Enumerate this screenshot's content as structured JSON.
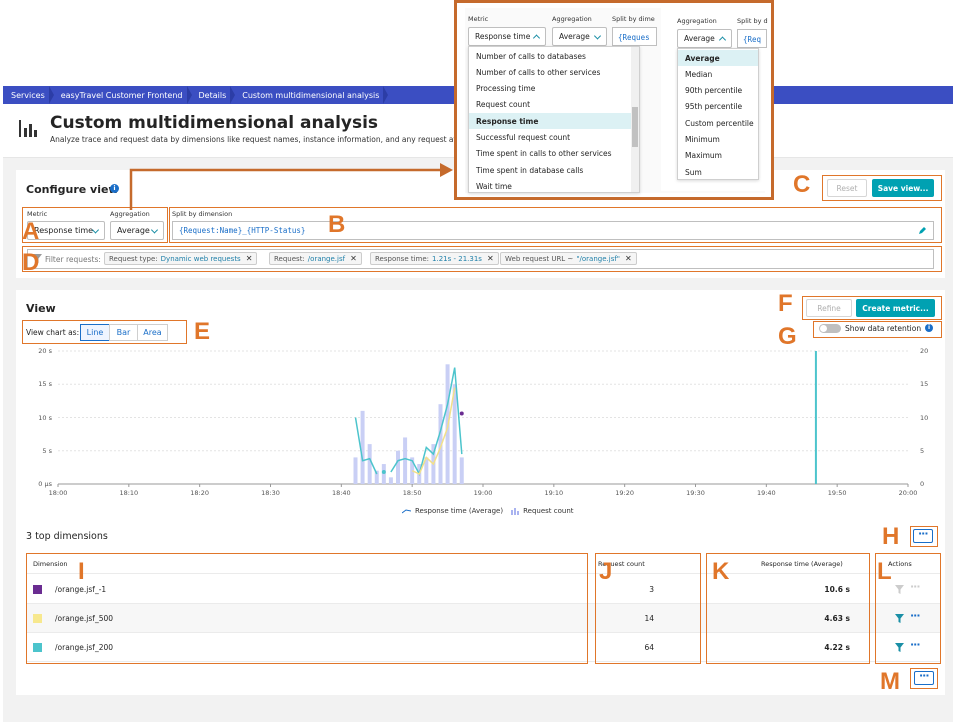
{
  "breadcrumb": [
    "Services",
    "easyTravel Customer Frontend",
    "Details",
    "Custom multidimensional analysis"
  ],
  "header": {
    "title": "Custom multidimensional analysis",
    "subtitle": "Analyze trace and request data by dimensions like request names, instance information, and any request attributes."
  },
  "configure": {
    "title": "Configure view",
    "metric_label": "Metric",
    "metric_value": "Response time",
    "aggregation_label": "Aggregation",
    "aggregation_value": "Average",
    "split_label": "Split by dimension",
    "split_value": "{Request:Name}_{HTTP-Status}",
    "reset_label": "Reset",
    "save_label": "Save view...",
    "filter_label": "Filter requests:",
    "filters": [
      {
        "key": "Request type:",
        "value": "Dynamic web requests"
      },
      {
        "key": "Request:",
        "value": "/orange.jsf"
      },
      {
        "key": "Response time:",
        "value": "1.21s - 21.31s"
      },
      {
        "key": "Web request URL ~",
        "value": "\"/orange.jsf\""
      }
    ]
  },
  "view": {
    "title": "View",
    "chart_as_label": "View chart as:",
    "chart_types": [
      "Line",
      "Bar",
      "Area"
    ],
    "refine_label": "Refine",
    "create_metric_label": "Create metric...",
    "retention_label": "Show data retention"
  },
  "chart_data": {
    "type": "line",
    "x_ticks": [
      "18:00",
      "18:10",
      "18:20",
      "18:30",
      "18:40",
      "18:50",
      "19:00",
      "19:10",
      "19:20",
      "19:30",
      "19:40",
      "19:50",
      "20:00"
    ],
    "y_left_ticks": [
      "20 s",
      "15 s",
      "10 s",
      "5 s",
      "0 µs"
    ],
    "y_right_ticks": [
      "20",
      "15",
      "10",
      "5",
      "0"
    ],
    "ylim": [
      0,
      20
    ],
    "legend": [
      "Response time (Average)",
      "Request count"
    ],
    "series": [
      {
        "name": "Response time (Average)",
        "color": "#4cc4cc",
        "x": [
          "18:42",
          "18:43",
          "18:44",
          "18:45",
          "18:46",
          "18:47",
          "18:48",
          "18:49",
          "18:50",
          "18:51",
          "18:52",
          "18:53",
          "18:54",
          "18:55",
          "18:56",
          "18:57"
        ],
        "values": [
          10.0,
          3.5,
          3.8,
          1.5,
          null,
          1.8,
          3.5,
          3.8,
          3.5,
          1.5,
          5.5,
          4.5,
          8.0,
          12.0,
          17.5,
          4.5
        ]
      },
      {
        "name": "/orange.jsf_500",
        "color": "#f2e08a",
        "x": [
          "18:50",
          "18:51",
          "18:52",
          "18:53",
          "18:54",
          "18:55",
          "18:56"
        ],
        "values": [
          2.0,
          1.5,
          4.0,
          3.0,
          5.5,
          8.5,
          14.5
        ]
      },
      {
        "name": "Request count",
        "color": "#c9cff5",
        "x": [
          "18:42",
          "18:43",
          "18:44",
          "18:45",
          "18:46",
          "18:47",
          "18:48",
          "18:49",
          "18:50",
          "18:51",
          "18:52",
          "18:53",
          "18:54",
          "18:55",
          "18:56",
          "18:57"
        ],
        "values": [
          4,
          11,
          6,
          2,
          3,
          1,
          5,
          7,
          4,
          3,
          4,
          6,
          12,
          18,
          15,
          4
        ]
      }
    ],
    "points": [
      {
        "x": "18:57",
        "value": 10.6,
        "color": "#6a2c91"
      },
      {
        "x": "18:46",
        "value": 1.8,
        "color": "#4cc4cc"
      }
    ],
    "marker_x": "19:47"
  },
  "top": {
    "title": "3 top dimensions",
    "headers": {
      "dimension": "Dimension",
      "requests": "Request count",
      "response": "Response time (Average)",
      "actions": "Actions"
    },
    "rows": [
      {
        "name": "/orange.jsf_-1",
        "color": "#6a2c91",
        "requests": "3",
        "response": "10.6 s"
      },
      {
        "name": "/orange.jsf_500",
        "color": "#f7e88e",
        "requests": "14",
        "response": "4.63 s"
      },
      {
        "name": "/orange.jsf_200",
        "color": "#4cc4cc",
        "requests": "64",
        "response": "4.22 s"
      }
    ]
  },
  "popup": {
    "metric_label": "Metric",
    "metric_value": "Response time",
    "aggregation_label": "Aggregation",
    "aggregation_value": "Average",
    "split_label": "Split by dime",
    "split_value": "{Reques",
    "metric_options": [
      "Number of calls to databases",
      "Number of calls to other services",
      "Processing time",
      "Request count",
      "Response time",
      "Successful request count",
      "Time spent in calls to other services",
      "Time spent in database calls",
      "Wait time"
    ],
    "metric_selected": "Response time",
    "agg_label2": "Aggregation",
    "split_label2": "Split by d",
    "agg_value2": "Average",
    "split_value2": "{Req",
    "aggregation_options": [
      "Average",
      "Median",
      "90th percentile",
      "95th percentile",
      "Custom percentile",
      "Minimum",
      "Maximum",
      "Sum"
    ],
    "aggregation_selected": "Average"
  },
  "callouts": [
    "A",
    "B",
    "C",
    "D",
    "E",
    "F",
    "G",
    "H",
    "I",
    "J",
    "K",
    "L",
    "M"
  ]
}
